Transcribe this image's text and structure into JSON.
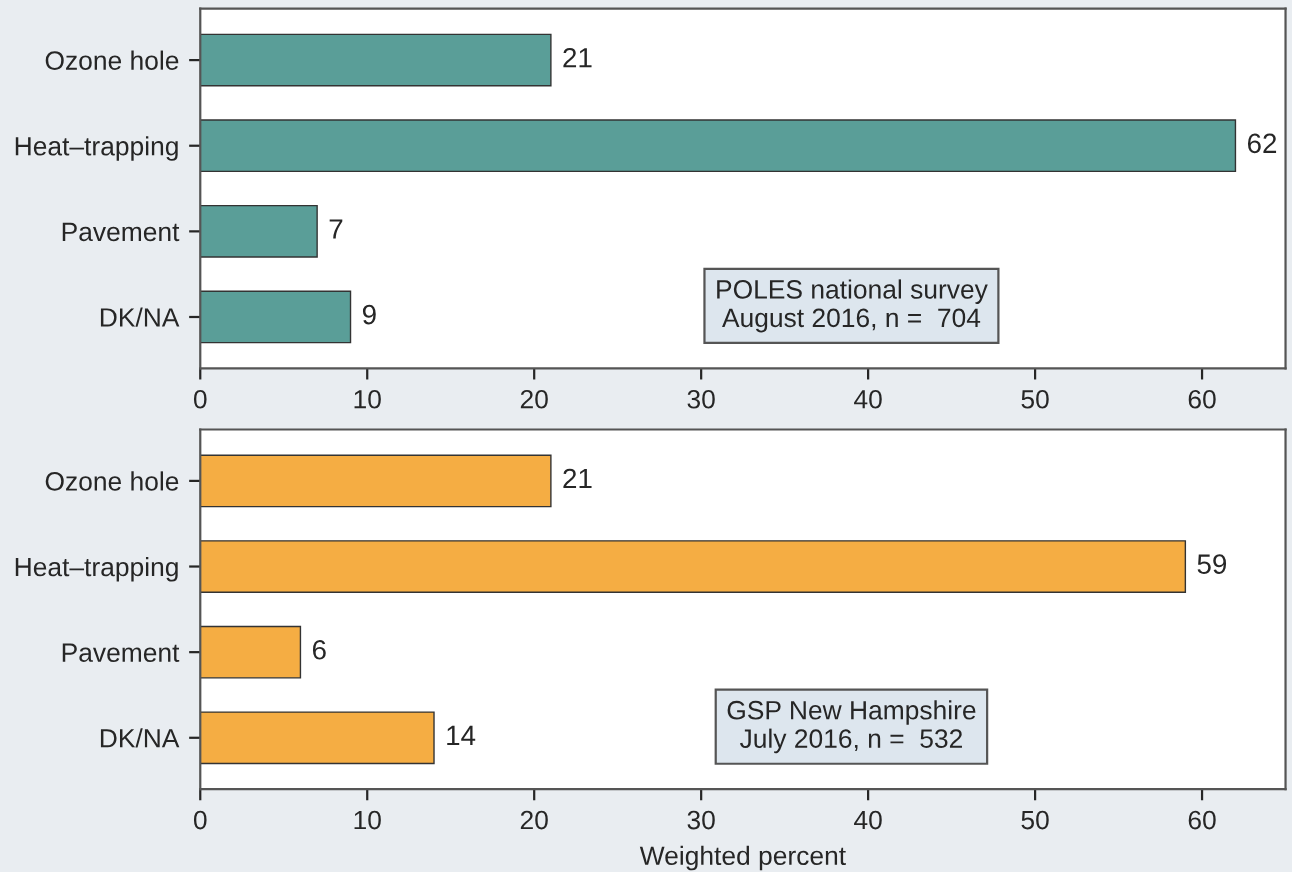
{
  "chart_data": [
    {
      "type": "bar",
      "orientation": "horizontal",
      "categories": [
        "Ozone hole",
        "Heat–trapping",
        "Pavement",
        "DK/NA"
      ],
      "values": [
        21,
        62,
        7,
        9
      ],
      "color": "#5a9e98",
      "xlim": [
        0,
        65
      ],
      "xticks": [
        0,
        10,
        20,
        30,
        40,
        50,
        60
      ],
      "data_labels": true,
      "annotations": [
        "POLES national survey\nAugust 2016, n =  704"
      ]
    },
    {
      "type": "bar",
      "orientation": "horizontal",
      "categories": [
        "Ozone hole",
        "Heat–trapping",
        "Pavement",
        "DK/NA"
      ],
      "values": [
        21,
        59,
        6,
        14
      ],
      "color": "#f5ad43",
      "xlim": [
        0,
        65
      ],
      "xticks": [
        0,
        10,
        20,
        30,
        40,
        50,
        60
      ],
      "data_labels": true,
      "xlabel": "Weighted percent",
      "annotations": [
        "GSP New Hampshire\nJuly 2016, n =  532"
      ]
    }
  ]
}
